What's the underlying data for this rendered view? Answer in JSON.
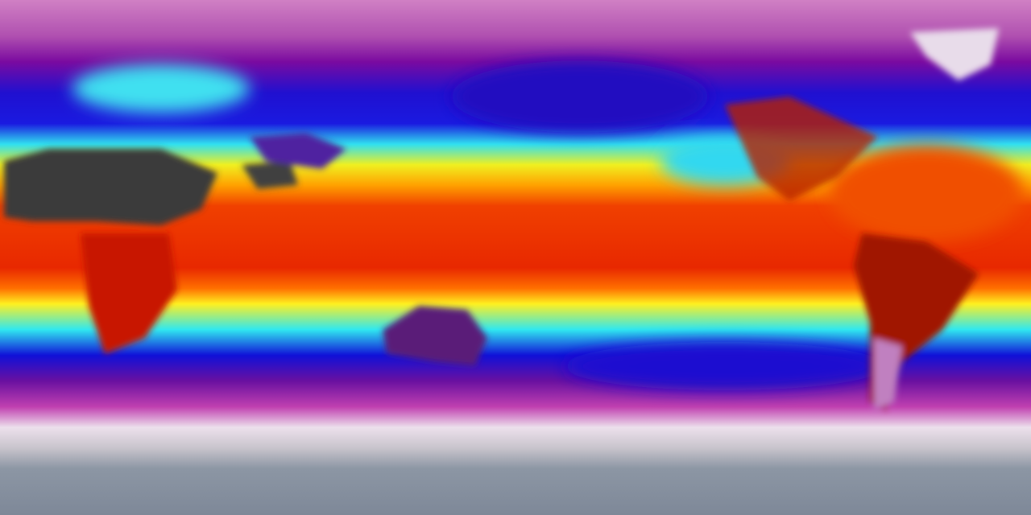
{
  "map": {
    "projection": "equirectangular",
    "colormap": {
      "pole_north": "#c86cb8",
      "high_lat": "#8a0a9a",
      "mid_lat_low": "#1a10d8",
      "transition": "#30e8f0",
      "subtropics": "#f8f020",
      "tropics": "#f03a00",
      "antarctic_cloud": "#e8e0ec",
      "antarctica": "#8c96a4",
      "desert": "#3a3a3a"
    }
  }
}
